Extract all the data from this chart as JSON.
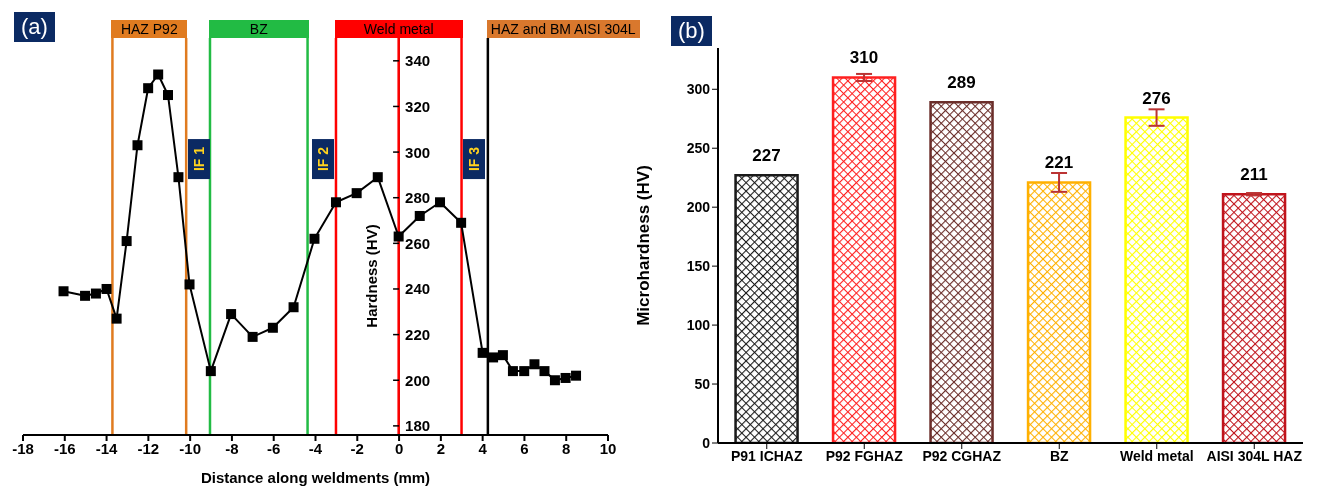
{
  "chart_data": [
    {
      "type": "line",
      "title": "(a)",
      "xlabel": "Distance along weldments (mm)",
      "ylabel": "Hardness (HV)",
      "x": [
        -16.06,
        -15.03,
        -14.51,
        -14.0,
        -13.52,
        -13.04,
        -12.52,
        -12.01,
        -11.53,
        -11.06,
        -10.56,
        -10.03,
        -9.01,
        -8.04,
        -7.01,
        -6.04,
        -5.05,
        -4.05,
        -3.02,
        -2.03,
        -1.02,
        -0.02,
        0.99,
        1.96,
        2.97,
        4.0,
        4.5,
        4.97,
        5.45,
        5.99,
        6.48,
        6.96,
        7.46,
        7.97,
        8.47
      ],
      "values": [
        239,
        237,
        238,
        240,
        227,
        261,
        303,
        328,
        334,
        325,
        289,
        242,
        204,
        229,
        219,
        223,
        232,
        262,
        278,
        282,
        289,
        263,
        272,
        278,
        269,
        212,
        210,
        211,
        204,
        204,
        207,
        204,
        200,
        201,
        202
      ],
      "color": "#000000",
      "marker": "square",
      "line_style": "solid",
      "xlim": [
        -18,
        10
      ],
      "xticks": [
        -18,
        -16,
        -14,
        -12,
        -10,
        -8,
        -6,
        -4,
        -2,
        0,
        2,
        4,
        6,
        8,
        10
      ],
      "ylim": [
        176,
        350
      ],
      "yticks": [
        180,
        200,
        220,
        240,
        260,
        280,
        300,
        320,
        340
      ],
      "ref_lines": [
        {
          "axis": "x",
          "value": -13.72,
          "color": "#e07b20",
          "label": "HAZ P92"
        },
        {
          "axis": "x",
          "value": -10.19,
          "color": "#e07b20"
        },
        {
          "axis": "x",
          "value": -9.05,
          "color": "#22bb44",
          "label": "BZ"
        },
        {
          "axis": "x",
          "value": -4.38,
          "color": "#22bb44"
        },
        {
          "axis": "x",
          "value": -3.02,
          "color": "#ff0000",
          "label": "Weld metal"
        },
        {
          "axis": "x",
          "value": -0.02,
          "color": "#ff0000"
        },
        {
          "axis": "x",
          "value": 2.99,
          "color": "#ff0000"
        },
        {
          "axis": "x",
          "value": 4.25,
          "label": "HAZ and BM AISI 304L",
          "color": "#000000"
        }
      ],
      "annotations": [
        {
          "text": "IF 1",
          "x": -9.6,
          "y": 297
        },
        {
          "text": "IF 2",
          "x": -3.66,
          "y": 297
        },
        {
          "text": "IF 3",
          "x": 3.57,
          "y": 297
        }
      ]
    },
    {
      "type": "bar",
      "title": "(b)",
      "ylabel": "Microhardness (HV)",
      "categories": [
        "P91 ICHAZ",
        "P92 FGHAZ",
        "P92 CGHAZ",
        "BZ",
        "Weld metal",
        "AISI 304L HAZ"
      ],
      "values": [
        227,
        310,
        289,
        221,
        276,
        211
      ],
      "colors": [
        "#1a1a1a",
        "#ff2020",
        "#6b2e2a",
        "#ffb000",
        "#ffff00",
        "#c0141c"
      ],
      "errors": [
        null,
        3,
        null,
        8,
        7,
        1
      ],
      "ylim": [
        0,
        335
      ],
      "yticks": [
        0,
        50,
        100,
        150,
        200,
        250,
        300
      ],
      "data_labels": true
    }
  ]
}
